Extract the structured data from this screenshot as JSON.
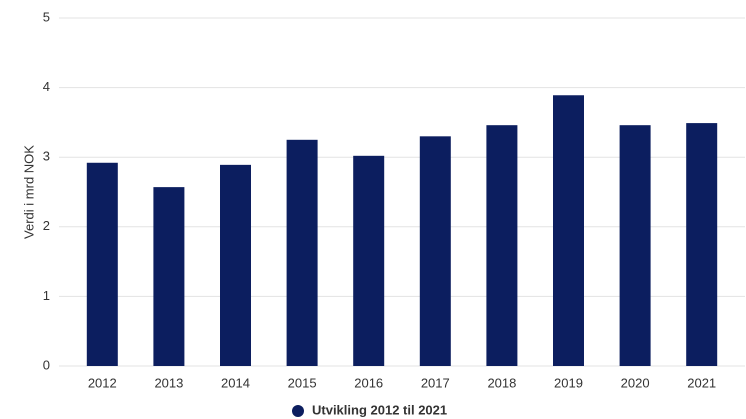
{
  "chart_data": {
    "type": "bar",
    "y_label": "Verdi i mrd NOK",
    "categories": [
      "2012",
      "2013",
      "2014",
      "2015",
      "2016",
      "2017",
      "2018",
      "2019",
      "2020",
      "2021"
    ],
    "series": [
      {
        "name": "Utvikling 2012 til 2021",
        "color": "#0c1e5f",
        "values": [
          2.92,
          2.57,
          2.89,
          3.25,
          3.02,
          3.3,
          3.46,
          3.89,
          3.46,
          3.49
        ]
      }
    ],
    "ylim": [
      0,
      5
    ],
    "yticks": [
      0,
      1,
      2,
      3,
      4,
      5
    ],
    "grid": true
  }
}
